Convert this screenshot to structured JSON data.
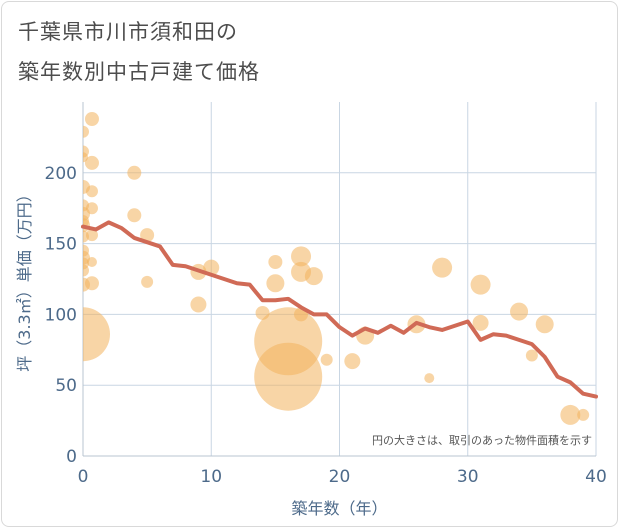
{
  "title_lines": [
    "千葉県市川市須和田の",
    "築年数別中古戸建て価格"
  ],
  "chart_data": {
    "type": "scatter",
    "title": "千葉県市川市須和田の築年数別中古戸建て価格",
    "xlabel": "築年数（年）",
    "ylabel": "坪（3.3㎡）単価（万円）",
    "xlim": [
      0,
      40
    ],
    "ylim": [
      0,
      250
    ],
    "x_ticks": [
      0,
      10,
      20,
      30,
      40
    ],
    "y_ticks": [
      0,
      50,
      100,
      150,
      200
    ],
    "grid": true,
    "annotation": "円の大きさは、取引のあった物件面積を示す",
    "colors": {
      "bubble": "#f2b25c",
      "line": "#d06a56",
      "grid": "#c9d6e3",
      "axis_text": "#4d6a8a"
    },
    "bubbles": [
      {
        "x": 0,
        "y": 229,
        "r": 6
      },
      {
        "x": 0,
        "y": 215,
        "r": 6
      },
      {
        "x": 0,
        "y": 211,
        "r": 5
      },
      {
        "x": 0,
        "y": 190,
        "r": 7
      },
      {
        "x": 0,
        "y": 177,
        "r": 6
      },
      {
        "x": 0,
        "y": 171,
        "r": 7
      },
      {
        "x": 0,
        "y": 166,
        "r": 6
      },
      {
        "x": 0,
        "y": 163,
        "r": 7
      },
      {
        "x": 0,
        "y": 155,
        "r": 6
      },
      {
        "x": 0,
        "y": 145,
        "r": 6
      },
      {
        "x": 0,
        "y": 140,
        "r": 7
      },
      {
        "x": 0,
        "y": 136,
        "r": 6
      },
      {
        "x": 0,
        "y": 131,
        "r": 6
      },
      {
        "x": 0,
        "y": 121,
        "r": 7
      },
      {
        "x": 0,
        "y": 86,
        "r": 27
      },
      {
        "x": 0.7,
        "y": 238,
        "r": 7
      },
      {
        "x": 0.7,
        "y": 207,
        "r": 7
      },
      {
        "x": 0.7,
        "y": 187,
        "r": 6
      },
      {
        "x": 0.7,
        "y": 175,
        "r": 6
      },
      {
        "x": 0.7,
        "y": 156,
        "r": 6
      },
      {
        "x": 0.7,
        "y": 137,
        "r": 5
      },
      {
        "x": 0.7,
        "y": 122,
        "r": 7
      },
      {
        "x": 4,
        "y": 200,
        "r": 7
      },
      {
        "x": 4,
        "y": 170,
        "r": 7
      },
      {
        "x": 5,
        "y": 156,
        "r": 7
      },
      {
        "x": 5,
        "y": 123,
        "r": 6
      },
      {
        "x": 9,
        "y": 130,
        "r": 8
      },
      {
        "x": 9,
        "y": 107,
        "r": 8
      },
      {
        "x": 10,
        "y": 133,
        "r": 8
      },
      {
        "x": 14,
        "y": 101,
        "r": 7
      },
      {
        "x": 15,
        "y": 137,
        "r": 7
      },
      {
        "x": 15,
        "y": 122,
        "r": 9
      },
      {
        "x": 16,
        "y": 81,
        "r": 34
      },
      {
        "x": 16,
        "y": 56,
        "r": 34
      },
      {
        "x": 17,
        "y": 141,
        "r": 10
      },
      {
        "x": 17,
        "y": 130,
        "r": 10
      },
      {
        "x": 17,
        "y": 100,
        "r": 7
      },
      {
        "x": 18,
        "y": 127,
        "r": 9
      },
      {
        "x": 19,
        "y": 68,
        "r": 6
      },
      {
        "x": 21,
        "y": 67,
        "r": 8
      },
      {
        "x": 22,
        "y": 85,
        "r": 9
      },
      {
        "x": 26,
        "y": 93,
        "r": 9
      },
      {
        "x": 27,
        "y": 55,
        "r": 5
      },
      {
        "x": 28,
        "y": 133,
        "r": 10
      },
      {
        "x": 31,
        "y": 121,
        "r": 10
      },
      {
        "x": 31,
        "y": 94,
        "r": 8
      },
      {
        "x": 34,
        "y": 102,
        "r": 9
      },
      {
        "x": 35,
        "y": 71,
        "r": 6
      },
      {
        "x": 36,
        "y": 93,
        "r": 9
      },
      {
        "x": 38,
        "y": 29,
        "r": 10
      },
      {
        "x": 39,
        "y": 29,
        "r": 6
      }
    ],
    "trend_line": {
      "x": [
        0,
        1,
        2,
        3,
        4,
        5,
        6,
        7,
        8,
        9,
        10,
        11,
        12,
        13,
        14,
        15,
        16,
        17,
        18,
        19,
        20,
        21,
        22,
        23,
        24,
        25,
        26,
        27,
        28,
        29,
        30,
        31,
        32,
        33,
        34,
        35,
        36,
        37,
        38,
        39,
        40
      ],
      "y": [
        162,
        160,
        165,
        161,
        154,
        151,
        148,
        135,
        134,
        131,
        128,
        125,
        122,
        121,
        110,
        110,
        111,
        105,
        100,
        100,
        91,
        85,
        90,
        87,
        92,
        87,
        94,
        91,
        89,
        92,
        95,
        82,
        86,
        85,
        82,
        79,
        70,
        56,
        52,
        44,
        42
      ]
    }
  }
}
